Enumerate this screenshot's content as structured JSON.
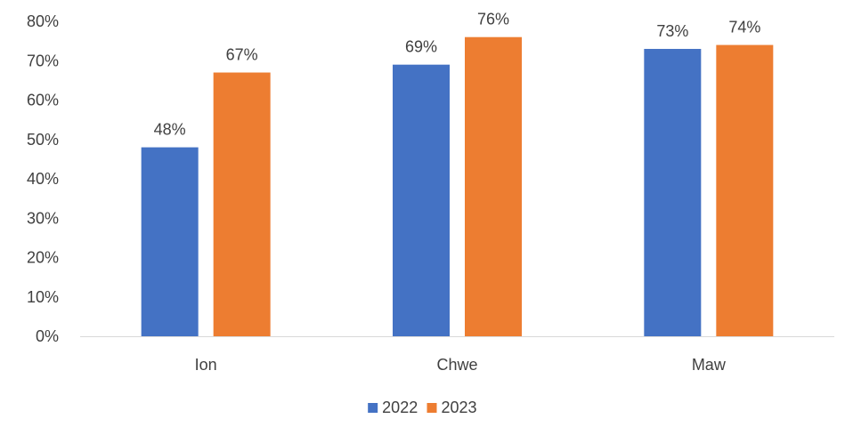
{
  "chart_data": {
    "type": "bar",
    "categories": [
      "Ion",
      "Chwe",
      "Maw"
    ],
    "series": [
      {
        "name": "2022",
        "values": [
          48,
          69,
          73
        ],
        "labels": [
          "48%",
          "69%",
          "73%"
        ],
        "color": "#4472C4"
      },
      {
        "name": "2023",
        "values": [
          67,
          76,
          74
        ],
        "labels": [
          "67%",
          "76%",
          "74%"
        ],
        "color": "#ED7D31"
      }
    ],
    "yticks": [
      "0%",
      "10%",
      "20%",
      "30%",
      "40%",
      "50%",
      "60%",
      "70%",
      "80%"
    ],
    "ylim": [
      0,
      80
    ],
    "ytick_step": 10,
    "grid": false,
    "legend_position": "bottom",
    "axis_color": "#D9D9D9",
    "text_color": "#404040"
  }
}
